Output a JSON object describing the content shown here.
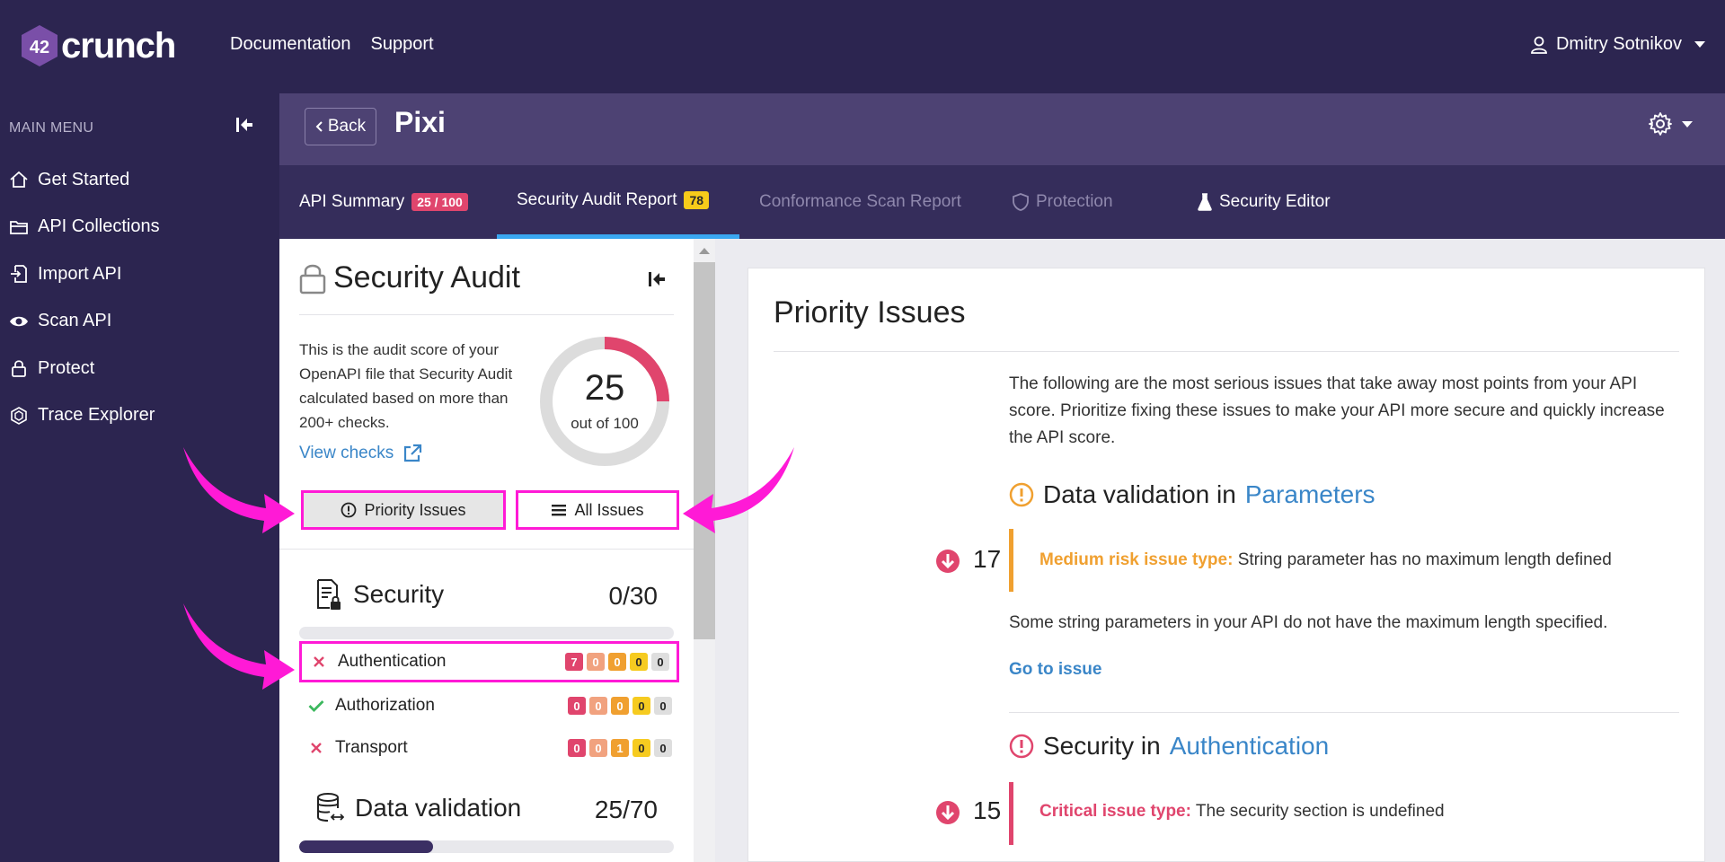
{
  "app": {
    "logo_text": "crunch",
    "logo_number": "42",
    "top_nav": [
      "Documentation",
      "Support"
    ],
    "user_name": "Dmitry Sotnikov"
  },
  "sidebar": {
    "heading": "MAIN MENU",
    "items": [
      {
        "label": "Get Started",
        "icon": "home-icon"
      },
      {
        "label": "API Collections",
        "icon": "folder-icon"
      },
      {
        "label": "Import API",
        "icon": "import-icon"
      },
      {
        "label": "Scan API",
        "icon": "eye-icon"
      },
      {
        "label": "Protect",
        "icon": "lock-icon"
      },
      {
        "label": "Trace Explorer",
        "icon": "trace-icon"
      }
    ]
  },
  "header": {
    "back_label": "Back",
    "title": "Pixi"
  },
  "tabs": [
    {
      "label": "API Summary",
      "badge": "25 / 100"
    },
    {
      "label": "Security Audit Report",
      "badge": "78"
    },
    {
      "label": "Conformance Scan Report"
    },
    {
      "label": "Protection"
    },
    {
      "label": "Security Editor"
    }
  ],
  "audit": {
    "title": "Security Audit",
    "description": "This is the audit score of your OpenAPI file that Security Audit calculated based on more than 200+ checks.",
    "view_checks": "View checks",
    "score": "25",
    "score_sub": "out of 100",
    "score_fraction": 0.25,
    "priority_btn": "Priority Issues",
    "all_btn": "All Issues",
    "categories": [
      {
        "name": "Security",
        "score": "0/30",
        "fill": 0,
        "subs": [
          {
            "label": "Authentication",
            "status": "fail",
            "counts": [
              "7",
              "0",
              "0",
              "0",
              "0"
            ]
          },
          {
            "label": "Authorization",
            "status": "pass",
            "counts": [
              "0",
              "0",
              "0",
              "0",
              "0"
            ]
          },
          {
            "label": "Transport",
            "status": "fail",
            "counts": [
              "0",
              "0",
              "1",
              "0",
              "0"
            ]
          }
        ]
      },
      {
        "name": "Data validation",
        "score": "25/70",
        "fill": 0.357
      }
    ]
  },
  "priority": {
    "title": "Priority Issues",
    "intro": "The following are the most serious issues that take away most points from your API score. Prioritize fixing these issues to make your API more secure and quickly increase the API score.",
    "issues": [
      {
        "head_prefix": "Data validation in",
        "head_link": "Parameters",
        "points": "17",
        "type_label": "Medium risk issue type:",
        "type_text": "String parameter has no maximum length defined",
        "desc": "Some string parameters in your API do not have the maximum length specified.",
        "goto": "Go to issue"
      },
      {
        "head_prefix": "Security in",
        "head_link": "Authentication",
        "points": "15",
        "type_label": "Critical issue type:",
        "type_text": "The security section is undefined"
      }
    ]
  },
  "colors": {
    "bg_dark": "#2c2550",
    "header_band": "#4d4273",
    "critical": "#e0456d",
    "medium": "#f0a030",
    "link": "#3a86c8",
    "annotation": "#ff1ad6"
  }
}
